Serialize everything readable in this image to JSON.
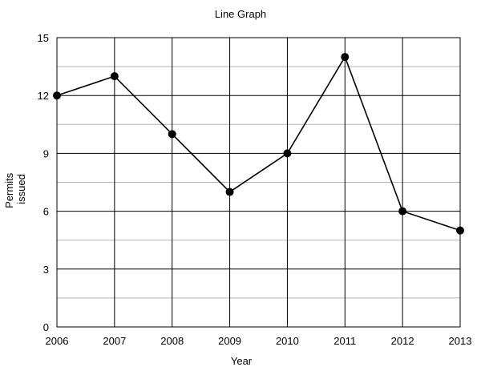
{
  "chart_data": {
    "type": "line",
    "title": "Line Graph",
    "xlabel": "Year",
    "ylabel": [
      "Permits",
      "issued"
    ],
    "categories": [
      "2006",
      "2007",
      "2008",
      "2009",
      "2010",
      "2011",
      "2012",
      "2013"
    ],
    "series": [
      {
        "values": [
          12,
          13,
          10,
          7,
          9,
          14,
          6,
          5
        ],
        "color": "#000000"
      }
    ],
    "ylim": [
      0,
      15
    ],
    "yticks": [
      "0",
      "3",
      "6",
      "9",
      "12",
      "15"
    ],
    "grid": true,
    "legend": "none"
  }
}
